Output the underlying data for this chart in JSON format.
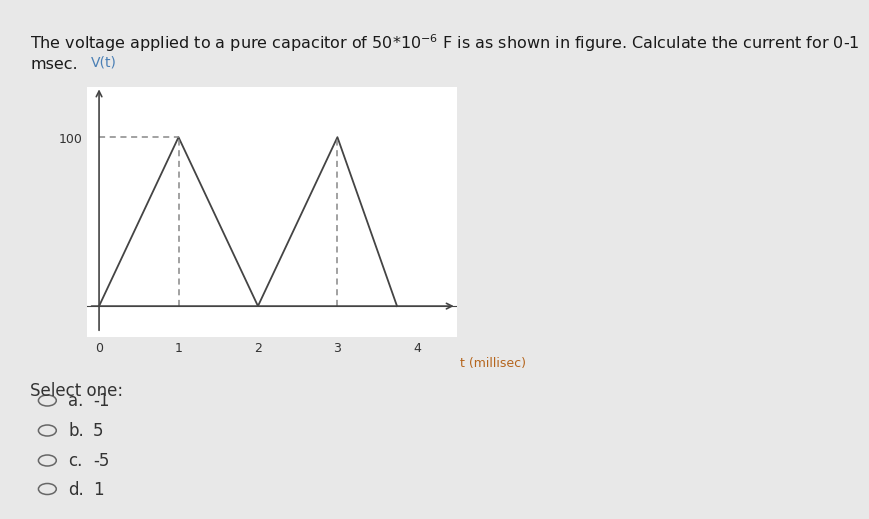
{
  "title_line1": "The voltage applied to a pure capacitor of 50*10",
  "title_superscript": "-6",
  "title_line1_suffix": " F is as shown in figure. Calculate the current for 0-1",
  "title_line2": "msec.",
  "graph_ylabel": "V(t)",
  "graph_xlabel": "t (millisec)",
  "xlabel_color": "#b5651d",
  "ylabel_color": "#4a7fb5",
  "waveform_x": [
    0,
    1,
    2,
    3,
    3.75
  ],
  "waveform_y": [
    0,
    100,
    0,
    100,
    0
  ],
  "dashed_lines": [
    {
      "x": [
        1,
        1
      ],
      "y": [
        0,
        100
      ]
    },
    {
      "x": [
        3,
        3
      ],
      "y": [
        0,
        100
      ]
    }
  ],
  "h_dashed_line": {
    "x": [
      0,
      1
    ],
    "y": [
      100,
      100
    ]
  },
  "y_tick_label": "100",
  "x_ticks": [
    0,
    1,
    2,
    3,
    4
  ],
  "y_ticks": [
    100
  ],
  "xlim": [
    -0.15,
    4.5
  ],
  "ylim": [
    -18,
    130
  ],
  "background_color": "#e8e8e8",
  "plot_bg_color": "#ffffff",
  "box_bg_color": "#f5f5f5",
  "select_one_text": "Select one:",
  "options": [
    {
      "label": "a.",
      "value": "-1"
    },
    {
      "label": "b.",
      "value": "5"
    },
    {
      "label": "c.",
      "value": "-5"
    },
    {
      "label": "d.",
      "value": "1"
    }
  ],
  "title_fontsize": 11.5,
  "axis_label_fontsize": 9,
  "tick_fontsize": 9,
  "option_fontsize": 12,
  "select_fontsize": 12
}
